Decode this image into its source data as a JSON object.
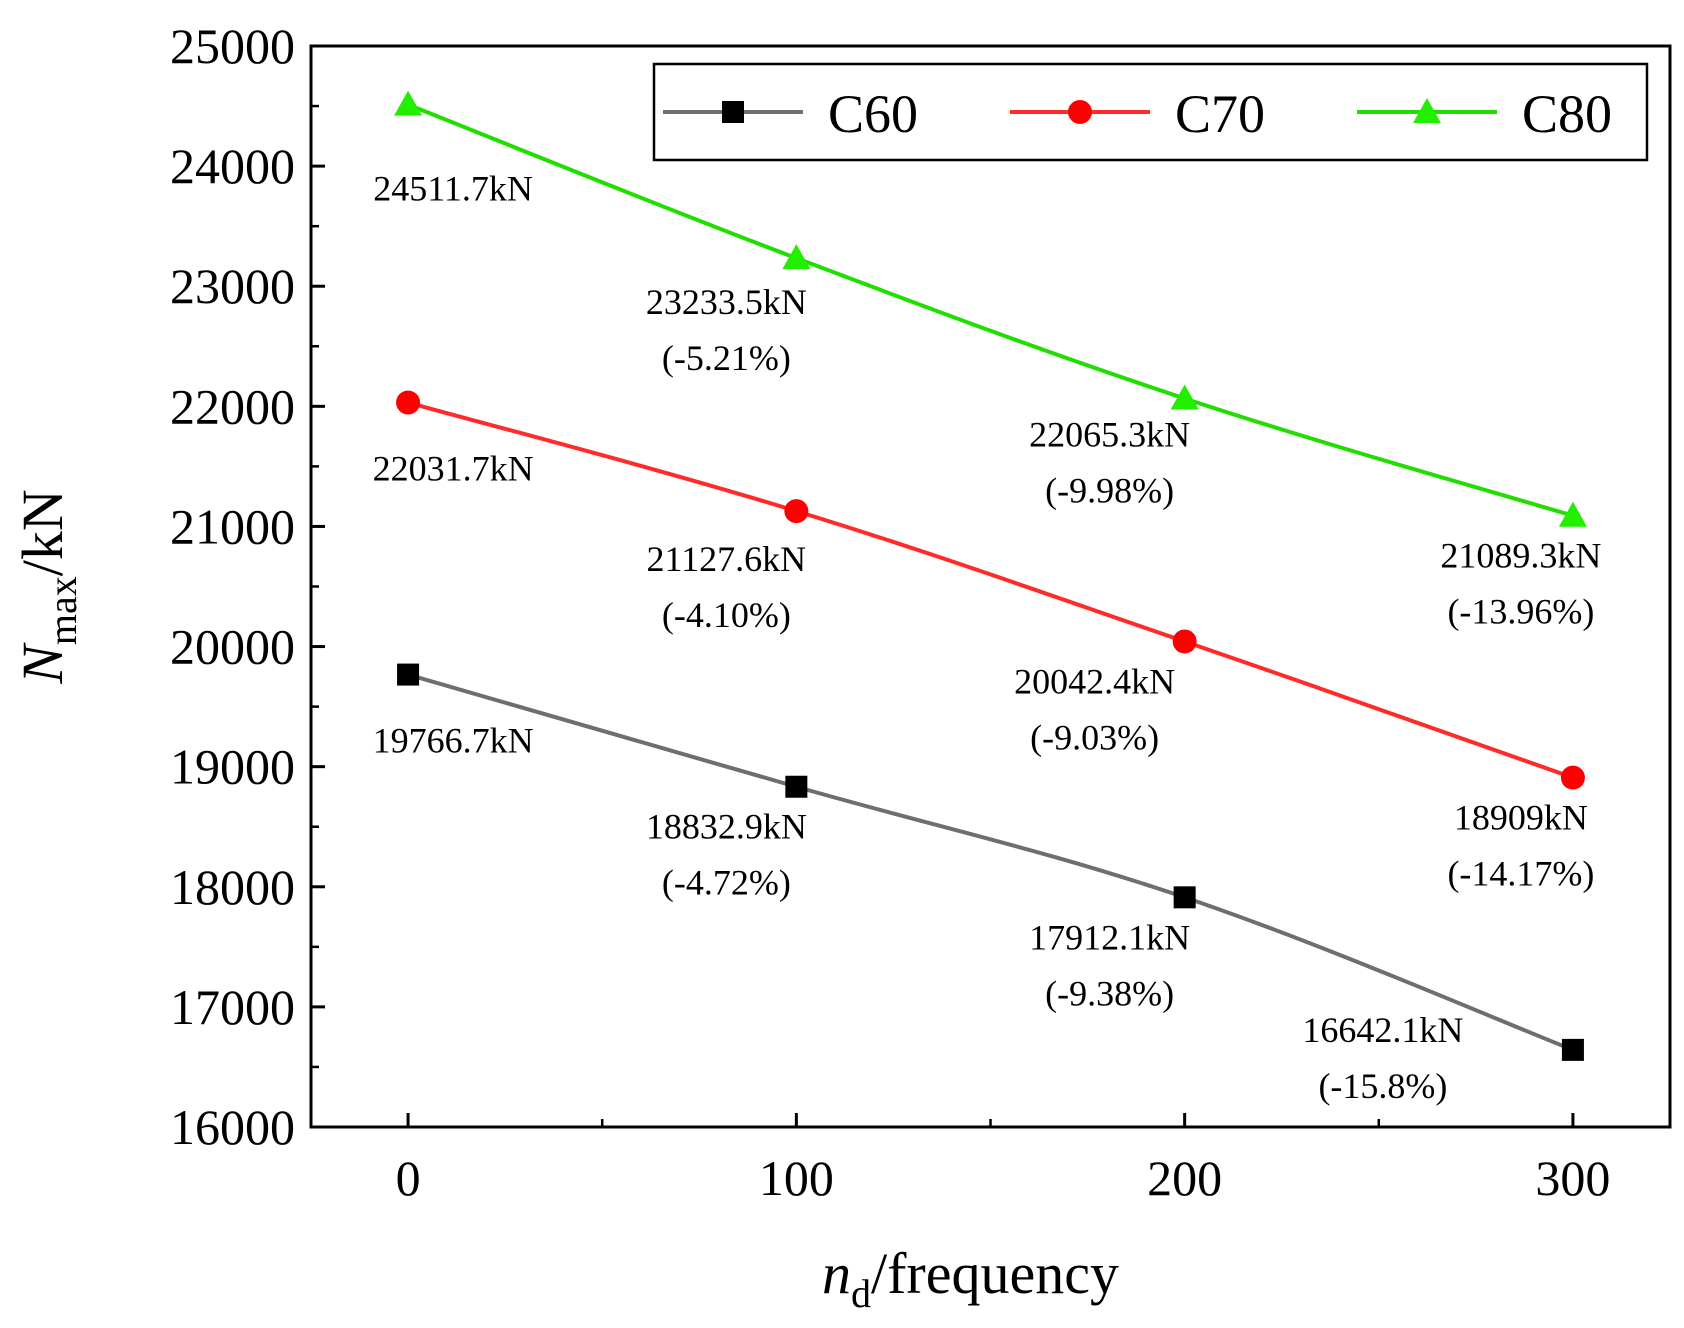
{
  "chart_data": {
    "type": "line",
    "x": [
      0,
      100,
      200,
      300
    ],
    "xlim": [
      -25,
      325
    ],
    "ylim": [
      16000,
      25000
    ],
    "xticks": [
      0,
      100,
      200,
      300
    ],
    "yticks": [
      16000,
      17000,
      18000,
      19000,
      20000,
      21000,
      22000,
      23000,
      24000,
      25000
    ],
    "xlabel": {
      "var": "n",
      "sub": "d",
      "rest": "/frequency"
    },
    "ylabel": {
      "var": "N",
      "sub": "max",
      "rest": "/kN"
    },
    "legend_position": "top-right",
    "series": [
      {
        "name": "C60",
        "color": "#6e6e6e",
        "marker": "square",
        "marker_color": "#000000",
        "values": [
          19766.7,
          18832.9,
          17912.1,
          16642.1
        ],
        "labels": [
          [
            "19766.7kN"
          ],
          [
            "18832.9kN",
            "(-4.72%)"
          ],
          [
            "17912.1kN",
            "(-9.38%)"
          ],
          [
            "16642.1kN",
            "(-15.8%)"
          ]
        ]
      },
      {
        "name": "C70",
        "color": "#ff2a2a",
        "marker": "circle",
        "marker_color": "#ff0000",
        "values": [
          22031.7,
          21127.6,
          20042.4,
          18909
        ],
        "labels": [
          [
            "22031.7kN"
          ],
          [
            "21127.6kN",
            "(-4.10%)"
          ],
          [
            "20042.4kN",
            "(-9.03%)"
          ],
          [
            "18909kN",
            "(-14.17%)"
          ]
        ]
      },
      {
        "name": "C80",
        "color": "#22dd00",
        "marker": "triangle",
        "marker_color": "#22ee00",
        "values": [
          24511.7,
          23233.5,
          22065.3,
          21089.3
        ],
        "labels": [
          [
            "24511.7kN"
          ],
          [
            "23233.5kN",
            "(-5.21%)"
          ],
          [
            "22065.3kN",
            "(-9.98%)"
          ],
          [
            "21089.3kN",
            "(-13.96%)"
          ]
        ]
      }
    ]
  }
}
